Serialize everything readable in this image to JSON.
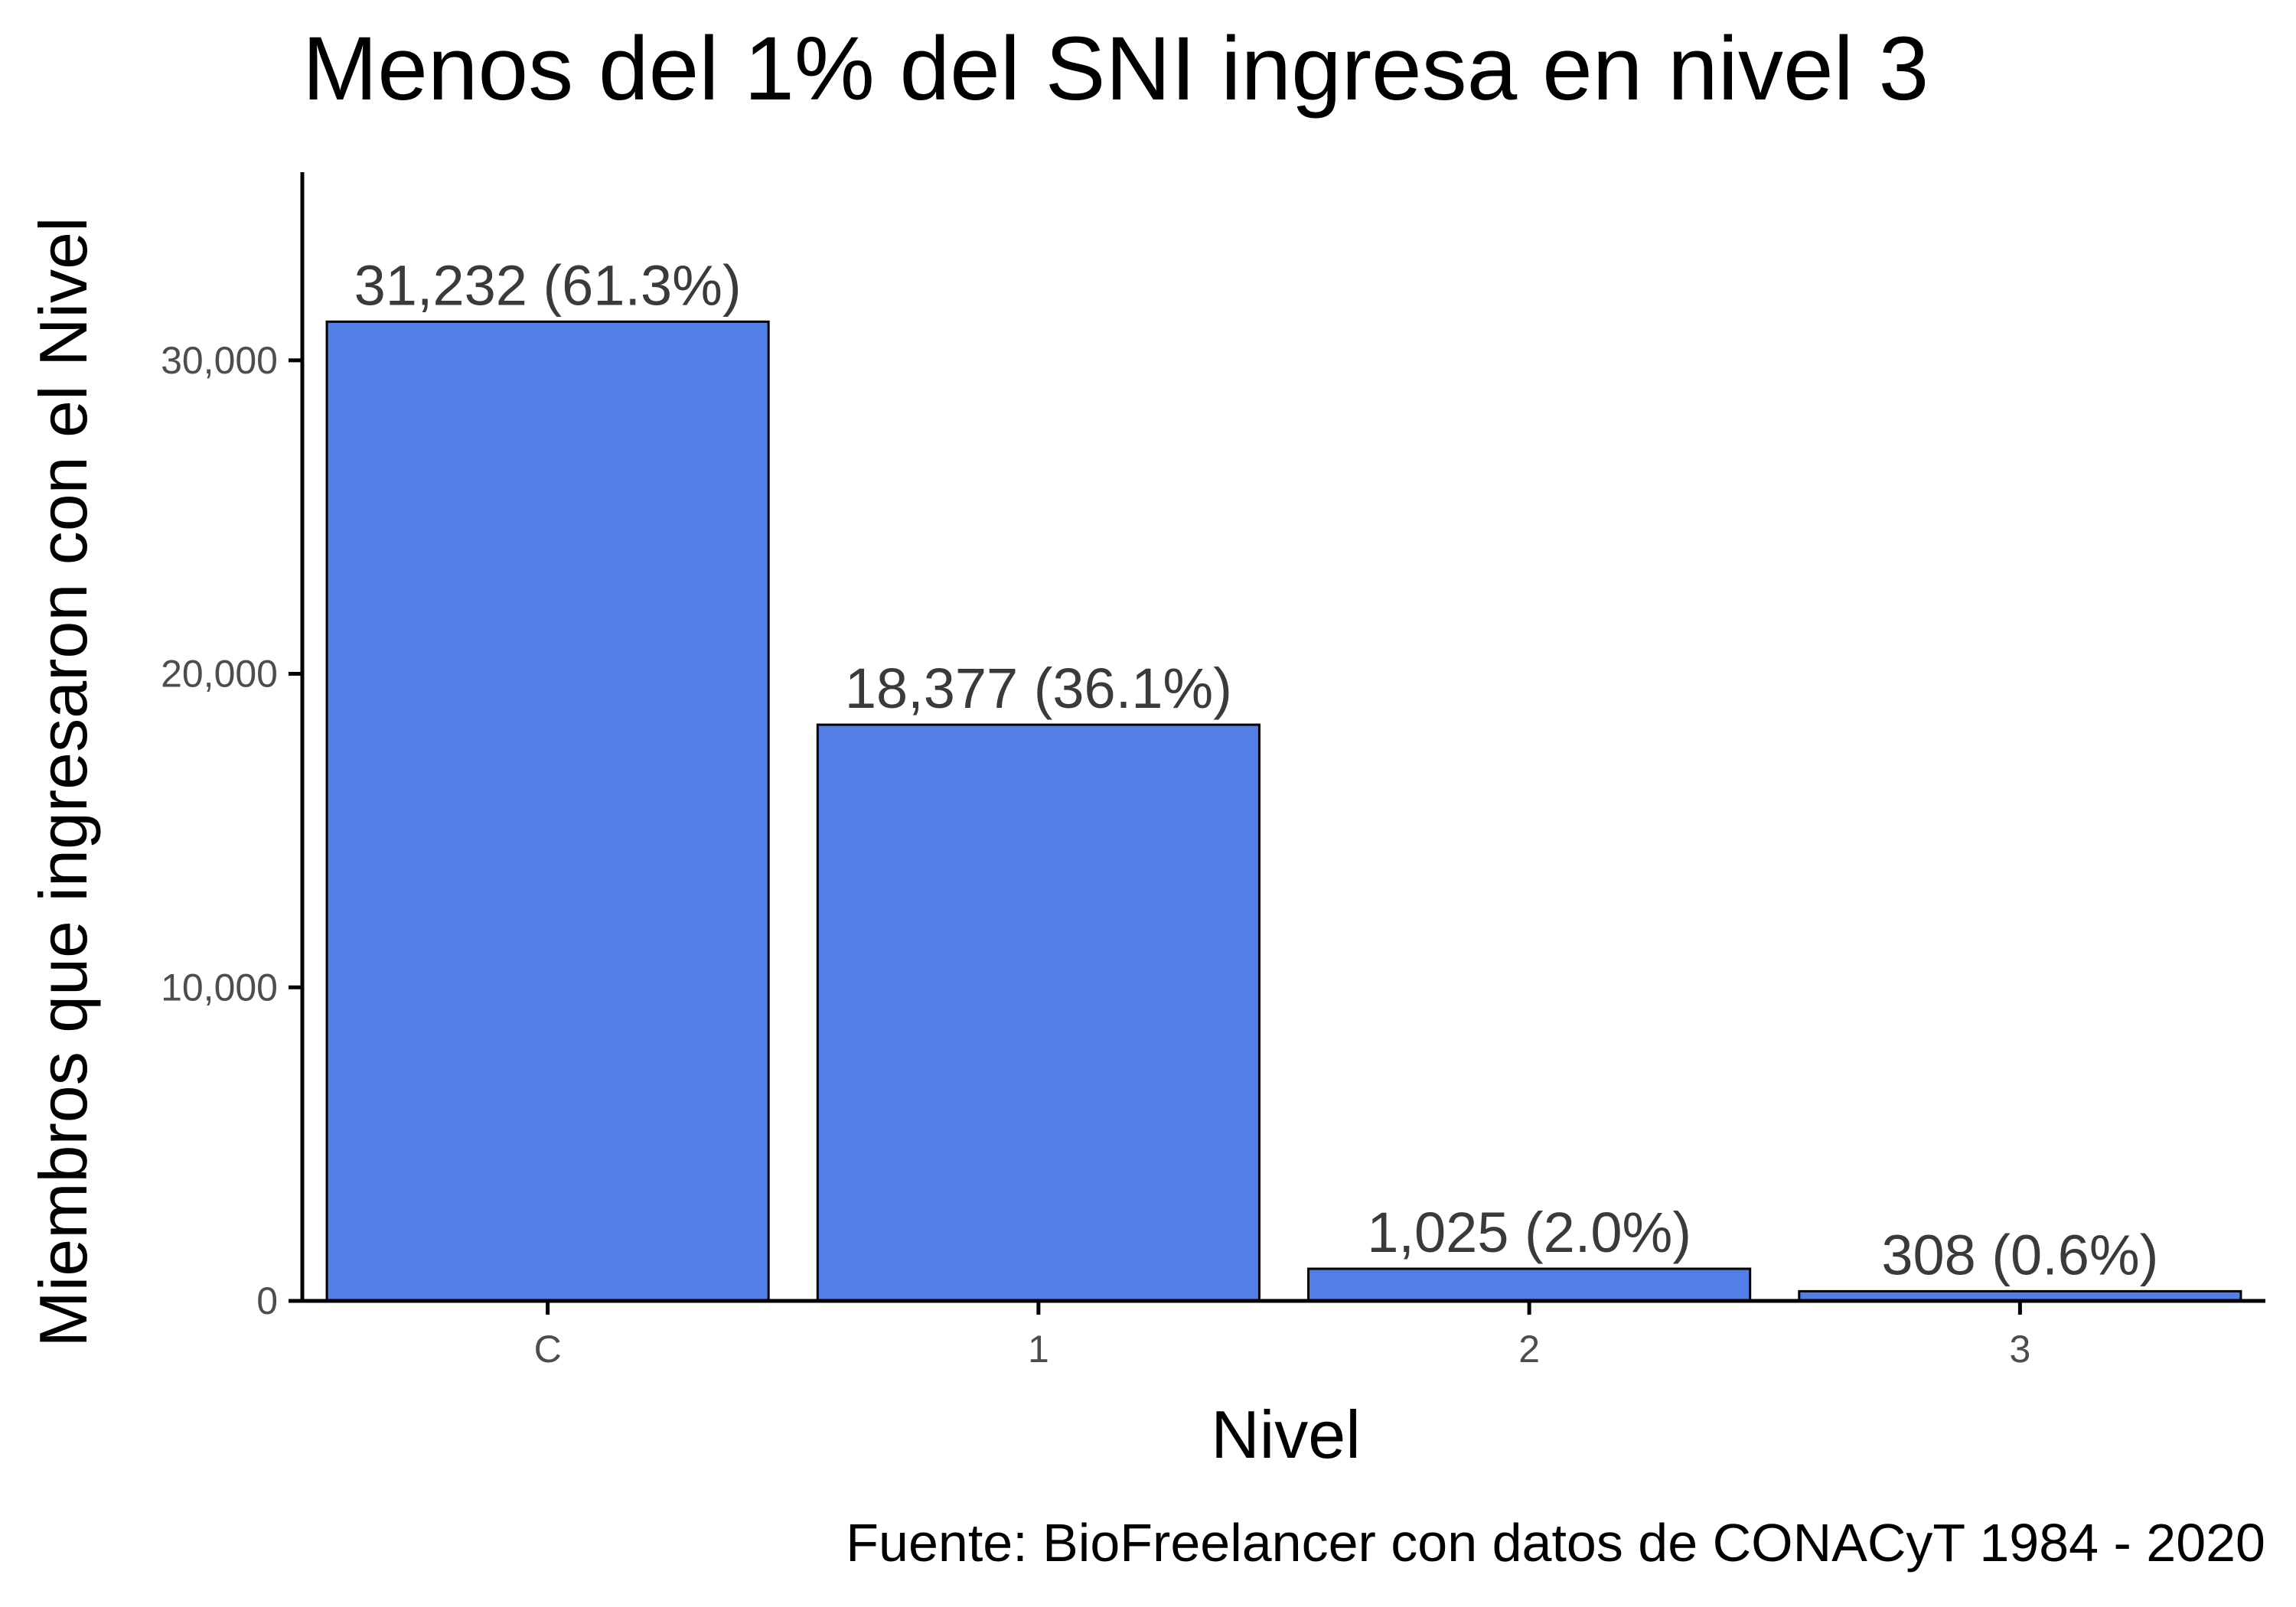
{
  "chart_data": {
    "type": "bar",
    "title": "Menos del 1% del SNI ingresa en nivel 3",
    "xlabel": "Nivel",
    "ylabel": "Miembros que ingresaron con el Nivel",
    "caption": "Fuente: BioFreelancer con datos de CONACyT 1984 - 2020",
    "categories": [
      "C",
      "1",
      "2",
      "3"
    ],
    "values": [
      31232,
      18377,
      1025,
      308
    ],
    "data_labels": [
      "31,232 (61.3%)",
      "18,377 (36.1%)",
      "1,025 (2.0%)",
      "308 (0.6%)"
    ],
    "ylim": [
      0,
      36000
    ],
    "y_ticks": [
      0,
      10000,
      20000,
      30000
    ],
    "y_tick_labels": [
      "0",
      "10,000",
      "20,000",
      "30,000"
    ],
    "grid": false,
    "legend": "none",
    "bar_color": "#527FE6",
    "bar_outline_color": "#000000"
  }
}
